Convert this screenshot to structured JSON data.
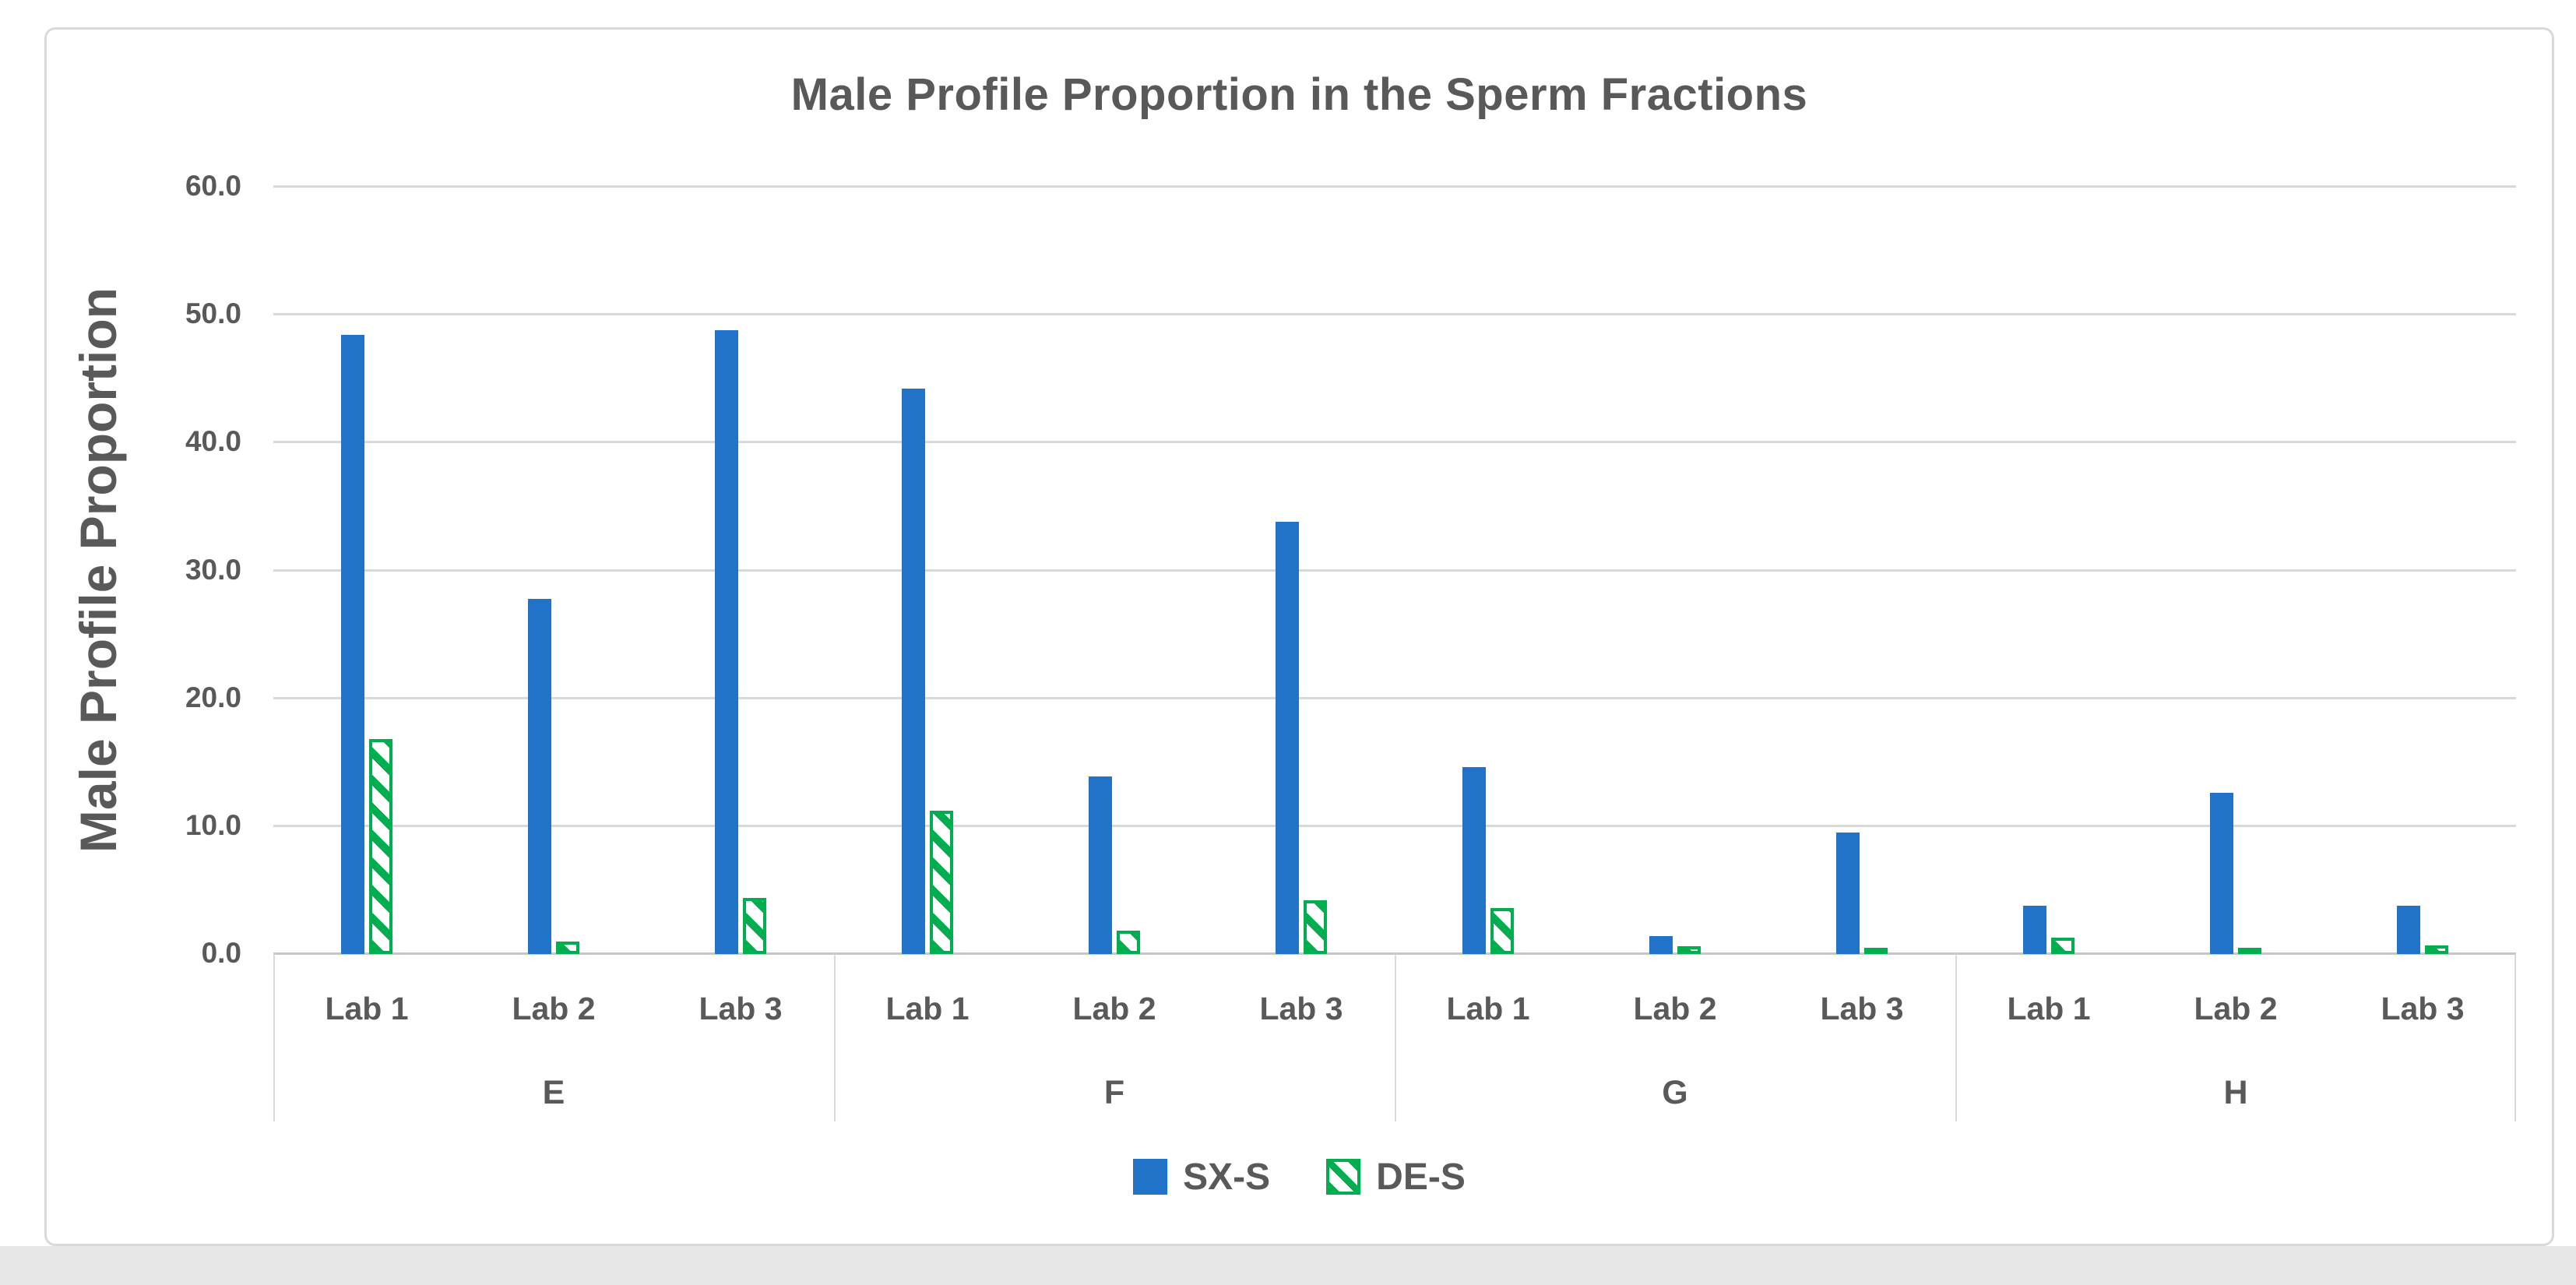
{
  "chart_data": {
    "type": "bar",
    "title": "Male Profile Proportion in the Sperm Fractions",
    "ylabel": "Male Profile Proportion",
    "xlabel": "",
    "ylim": [
      0,
      60
    ],
    "ytick_step": 10,
    "ytick_labels": [
      "0.0",
      "10.0",
      "20.0",
      "30.0",
      "40.0",
      "50.0",
      "60.0"
    ],
    "grid": true,
    "legend_position": "bottom-center",
    "groups": [
      "E",
      "F",
      "G",
      "H"
    ],
    "categories_per_group": [
      "Lab 1",
      "Lab 2",
      "Lab 3"
    ],
    "category_slots": [
      "E Lab 1",
      "E Lab 2",
      "E Lab 3",
      "F Lab 1",
      "F Lab 2",
      "F Lab 3",
      "G Lab 1",
      "G Lab 2",
      "G Lab 3",
      "H Lab 1",
      "H Lab 2",
      "H Lab 3"
    ],
    "series": [
      {
        "name": "SX-S",
        "pattern": "solid",
        "color": "#2173C9",
        "values": [
          48.4,
          27.8,
          48.8,
          44.2,
          13.9,
          33.8,
          14.6,
          1.4,
          9.5,
          3.8,
          12.6,
          3.8
        ]
      },
      {
        "name": "DE-S",
        "pattern": "diagonal-hatch",
        "color": "#00AE4F",
        "values": [
          16.8,
          1.0,
          4.4,
          11.2,
          1.8,
          4.2,
          3.6,
          0.6,
          0.5,
          1.3,
          0.4,
          0.7
        ]
      }
    ]
  },
  "colors": {
    "text": "#595959",
    "gridline": "#D9D9D9",
    "axis_line": "#C6C6C6",
    "frame_border": "#D9D9D9",
    "background": "#FFFFFF",
    "bottom_strip": "#E6E6E6"
  }
}
